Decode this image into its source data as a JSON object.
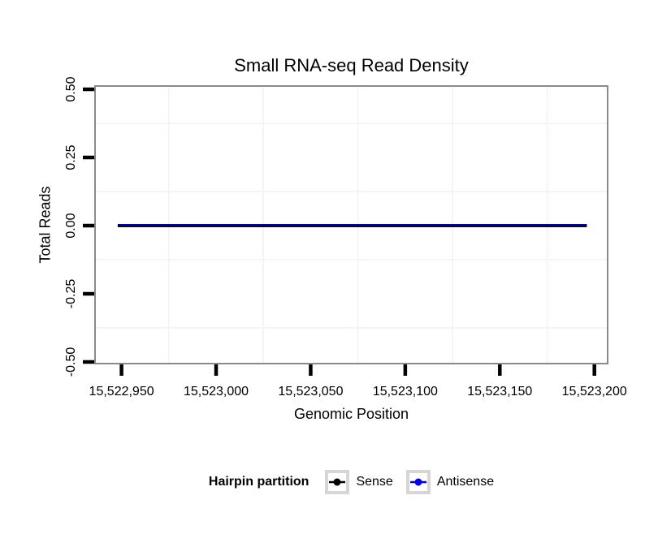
{
  "chart_data": {
    "type": "line",
    "title": "Small RNA-seq Read Density",
    "xlabel": "Genomic Position",
    "ylabel": "Total Reads",
    "xlim": [
      15522936,
      15523207
    ],
    "ylim": [
      -0.506,
      0.512
    ],
    "x_ticks": {
      "values": [
        15522950,
        15523000,
        15523050,
        15523100,
        15523150,
        15523200
      ],
      "labels": [
        "15,522,950",
        "15,523,000",
        "15,523,050",
        "15,523,100",
        "15,523,150",
        "15,523,200"
      ]
    },
    "y_ticks": {
      "values": [
        0.5,
        0.25,
        0.0,
        -0.25,
        -0.5
      ],
      "labels": [
        "0.50",
        "0.25",
        "0.00",
        "-0.25",
        "-0.50"
      ]
    },
    "grid": {
      "mode": "minor-only",
      "color": "#f2f2f2"
    },
    "panel": {
      "background": "#ffffff",
      "border_color": "#8a8a8a"
    },
    "axis": {
      "tick_color": "#000000",
      "text_color": "#000000"
    },
    "series": [
      {
        "name": "Antisense",
        "color": "#0000ee",
        "stroke_width": 4,
        "points": [
          [
            15522948,
            0
          ],
          [
            15523196,
            0
          ]
        ]
      },
      {
        "name": "Sense",
        "color": "#000000",
        "stroke_width": 2.2,
        "points": [
          [
            15522948,
            0
          ],
          [
            15523196,
            0
          ]
        ]
      }
    ],
    "legend": {
      "title": "Hairpin partition",
      "position": "bottom",
      "key_border_color": "#d6d6d6",
      "key_background": "#ffffff",
      "entries": [
        {
          "label": "Sense",
          "color": "#000000"
        },
        {
          "label": "Antisense",
          "color": "#0000ee"
        }
      ]
    }
  }
}
